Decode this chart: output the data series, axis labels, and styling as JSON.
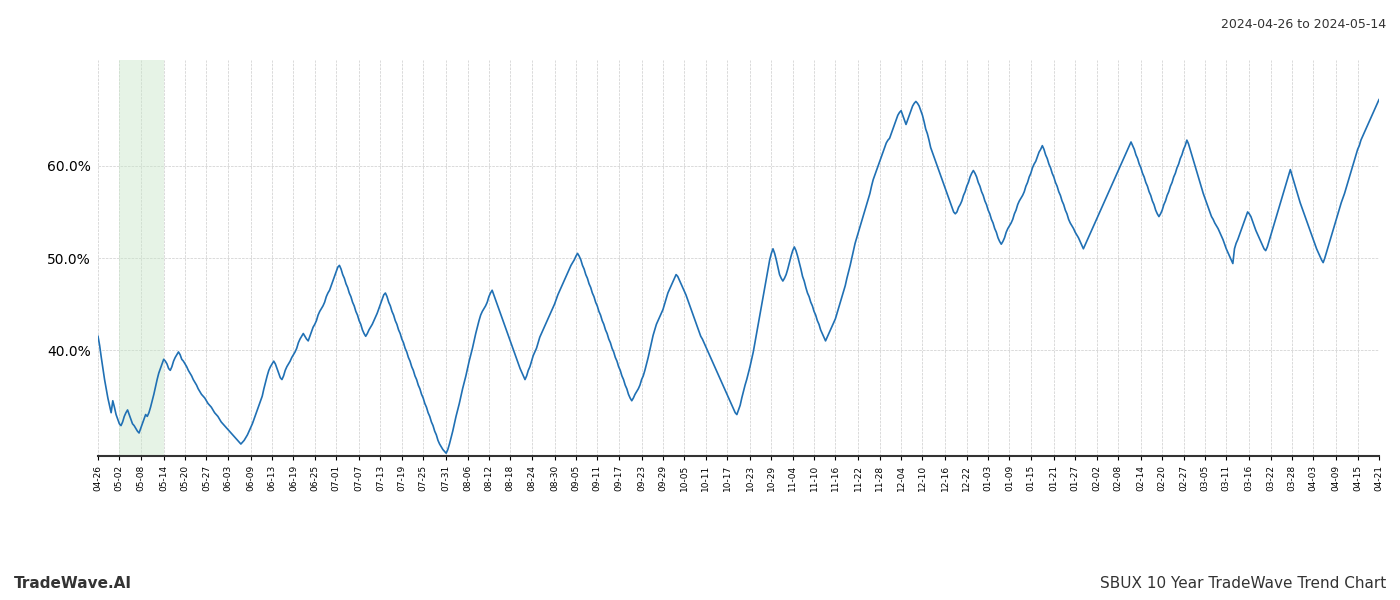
{
  "title_right": "2024-04-26 to 2024-05-14",
  "footer_left": "TradeWave.AI",
  "footer_right": "SBUX 10 Year TradeWave Trend Chart",
  "line_color": "#2070b4",
  "line_width": 1.2,
  "shade_color": "#c8e6c9",
  "shade_alpha": 0.45,
  "background_color": "#ffffff",
  "grid_color": "#cccccc",
  "ytick_labels": [
    "40.0%",
    "50.0%",
    "60.0%"
  ],
  "ytick_values": [
    0.4,
    0.5,
    0.6
  ],
  "ylim": [
    0.285,
    0.715
  ],
  "xtick_labels": [
    "04-26",
    "05-02",
    "05-08",
    "05-14",
    "05-20",
    "05-27",
    "06-03",
    "06-09",
    "06-13",
    "06-19",
    "06-25",
    "07-01",
    "07-07",
    "07-13",
    "07-19",
    "07-25",
    "07-31",
    "08-06",
    "08-12",
    "08-18",
    "08-24",
    "08-30",
    "09-05",
    "09-11",
    "09-17",
    "09-23",
    "09-29",
    "10-05",
    "10-11",
    "10-17",
    "10-23",
    "10-29",
    "11-04",
    "11-10",
    "11-16",
    "11-22",
    "11-28",
    "12-04",
    "12-10",
    "12-16",
    "12-22",
    "01-03",
    "01-09",
    "01-15",
    "01-21",
    "01-27",
    "02-02",
    "02-08",
    "02-14",
    "02-20",
    "02-27",
    "03-05",
    "03-11",
    "03-16",
    "03-22",
    "03-28",
    "04-03",
    "04-09",
    "04-15",
    "04-21"
  ],
  "shade_start_label": "05-02",
  "shade_end_label": "05-14",
  "y_values": [
    0.415,
    0.405,
    0.392,
    0.38,
    0.368,
    0.358,
    0.348,
    0.34,
    0.332,
    0.345,
    0.338,
    0.33,
    0.325,
    0.32,
    0.318,
    0.322,
    0.328,
    0.332,
    0.335,
    0.33,
    0.325,
    0.32,
    0.318,
    0.315,
    0.312,
    0.31,
    0.315,
    0.32,
    0.325,
    0.33,
    0.328,
    0.332,
    0.338,
    0.345,
    0.352,
    0.36,
    0.368,
    0.375,
    0.38,
    0.385,
    0.39,
    0.388,
    0.385,
    0.38,
    0.378,
    0.382,
    0.388,
    0.392,
    0.395,
    0.398,
    0.395,
    0.39,
    0.388,
    0.385,
    0.382,
    0.378,
    0.375,
    0.372,
    0.368,
    0.365,
    0.362,
    0.358,
    0.355,
    0.352,
    0.35,
    0.348,
    0.345,
    0.342,
    0.34,
    0.338,
    0.335,
    0.332,
    0.33,
    0.328,
    0.325,
    0.322,
    0.32,
    0.318,
    0.316,
    0.314,
    0.312,
    0.31,
    0.308,
    0.306,
    0.304,
    0.302,
    0.3,
    0.298,
    0.3,
    0.302,
    0.305,
    0.308,
    0.312,
    0.316,
    0.32,
    0.325,
    0.33,
    0.335,
    0.34,
    0.345,
    0.35,
    0.358,
    0.365,
    0.372,
    0.378,
    0.382,
    0.385,
    0.388,
    0.385,
    0.38,
    0.375,
    0.37,
    0.368,
    0.372,
    0.378,
    0.382,
    0.385,
    0.388,
    0.392,
    0.395,
    0.398,
    0.402,
    0.408,
    0.412,
    0.415,
    0.418,
    0.415,
    0.412,
    0.41,
    0.415,
    0.42,
    0.425,
    0.428,
    0.432,
    0.438,
    0.442,
    0.445,
    0.448,
    0.452,
    0.458,
    0.462,
    0.465,
    0.47,
    0.475,
    0.48,
    0.485,
    0.49,
    0.492,
    0.488,
    0.482,
    0.478,
    0.472,
    0.468,
    0.462,
    0.458,
    0.452,
    0.448,
    0.442,
    0.438,
    0.432,
    0.428,
    0.422,
    0.418,
    0.415,
    0.418,
    0.422,
    0.425,
    0.428,
    0.432,
    0.436,
    0.44,
    0.445,
    0.45,
    0.455,
    0.46,
    0.462,
    0.458,
    0.452,
    0.448,
    0.442,
    0.438,
    0.432,
    0.428,
    0.422,
    0.418,
    0.412,
    0.408,
    0.402,
    0.398,
    0.392,
    0.388,
    0.382,
    0.378,
    0.372,
    0.368,
    0.362,
    0.358,
    0.352,
    0.348,
    0.342,
    0.338,
    0.332,
    0.328,
    0.322,
    0.318,
    0.312,
    0.308,
    0.302,
    0.298,
    0.295,
    0.292,
    0.29,
    0.288,
    0.292,
    0.298,
    0.305,
    0.312,
    0.32,
    0.328,
    0.335,
    0.342,
    0.35,
    0.358,
    0.365,
    0.372,
    0.38,
    0.388,
    0.395,
    0.402,
    0.41,
    0.418,
    0.425,
    0.432,
    0.438,
    0.442,
    0.445,
    0.448,
    0.452,
    0.458,
    0.462,
    0.465,
    0.46,
    0.455,
    0.45,
    0.445,
    0.44,
    0.435,
    0.43,
    0.425,
    0.42,
    0.415,
    0.41,
    0.405,
    0.4,
    0.395,
    0.39,
    0.385,
    0.38,
    0.376,
    0.372,
    0.368,
    0.372,
    0.378,
    0.382,
    0.388,
    0.394,
    0.398,
    0.402,
    0.408,
    0.414,
    0.418,
    0.422,
    0.426,
    0.43,
    0.434,
    0.438,
    0.442,
    0.446,
    0.45,
    0.455,
    0.46,
    0.464,
    0.468,
    0.472,
    0.476,
    0.48,
    0.484,
    0.488,
    0.492,
    0.495,
    0.498,
    0.502,
    0.505,
    0.502,
    0.498,
    0.492,
    0.488,
    0.482,
    0.478,
    0.472,
    0.468,
    0.462,
    0.458,
    0.452,
    0.448,
    0.442,
    0.438,
    0.432,
    0.428,
    0.422,
    0.418,
    0.412,
    0.408,
    0.402,
    0.398,
    0.392,
    0.388,
    0.382,
    0.378,
    0.372,
    0.368,
    0.362,
    0.358,
    0.352,
    0.348,
    0.345,
    0.348,
    0.352,
    0.355,
    0.358,
    0.362,
    0.368,
    0.372,
    0.378,
    0.385,
    0.392,
    0.4,
    0.408,
    0.416,
    0.422,
    0.428,
    0.432,
    0.436,
    0.44,
    0.444,
    0.45,
    0.456,
    0.462,
    0.466,
    0.47,
    0.474,
    0.478,
    0.482,
    0.48,
    0.476,
    0.472,
    0.468,
    0.464,
    0.46,
    0.455,
    0.45,
    0.445,
    0.44,
    0.435,
    0.43,
    0.425,
    0.42,
    0.415,
    0.412,
    0.408,
    0.404,
    0.4,
    0.396,
    0.392,
    0.388,
    0.384,
    0.38,
    0.376,
    0.372,
    0.368,
    0.364,
    0.36,
    0.356,
    0.352,
    0.348,
    0.344,
    0.34,
    0.336,
    0.332,
    0.33,
    0.335,
    0.34,
    0.348,
    0.355,
    0.362,
    0.368,
    0.375,
    0.382,
    0.39,
    0.398,
    0.408,
    0.418,
    0.428,
    0.438,
    0.448,
    0.458,
    0.468,
    0.478,
    0.488,
    0.498,
    0.505,
    0.51,
    0.505,
    0.498,
    0.49,
    0.482,
    0.478,
    0.475,
    0.478,
    0.482,
    0.488,
    0.495,
    0.502,
    0.508,
    0.512,
    0.508,
    0.502,
    0.495,
    0.488,
    0.48,
    0.475,
    0.468,
    0.462,
    0.458,
    0.452,
    0.448,
    0.442,
    0.438,
    0.432,
    0.428,
    0.422,
    0.418,
    0.414,
    0.41,
    0.414,
    0.418,
    0.422,
    0.426,
    0.43,
    0.434,
    0.44,
    0.446,
    0.452,
    0.458,
    0.464,
    0.47,
    0.478,
    0.485,
    0.492,
    0.5,
    0.508,
    0.516,
    0.522,
    0.528,
    0.534,
    0.54,
    0.546,
    0.552,
    0.558,
    0.564,
    0.57,
    0.578,
    0.585,
    0.59,
    0.595,
    0.6,
    0.605,
    0.61,
    0.615,
    0.62,
    0.625,
    0.628,
    0.63,
    0.635,
    0.64,
    0.645,
    0.65,
    0.655,
    0.658,
    0.66,
    0.655,
    0.65,
    0.645,
    0.65,
    0.655,
    0.66,
    0.665,
    0.668,
    0.67,
    0.668,
    0.665,
    0.66,
    0.655,
    0.648,
    0.64,
    0.635,
    0.628,
    0.62,
    0.615,
    0.61,
    0.605,
    0.6,
    0.595,
    0.59,
    0.585,
    0.58,
    0.575,
    0.57,
    0.565,
    0.56,
    0.555,
    0.55,
    0.548,
    0.55,
    0.555,
    0.558,
    0.562,
    0.568,
    0.572,
    0.578,
    0.582,
    0.588,
    0.592,
    0.595,
    0.592,
    0.588,
    0.582,
    0.578,
    0.572,
    0.568,
    0.562,
    0.558,
    0.552,
    0.548,
    0.542,
    0.538,
    0.532,
    0.528,
    0.522,
    0.518,
    0.515,
    0.518,
    0.522,
    0.528,
    0.532,
    0.535,
    0.538,
    0.542,
    0.548,
    0.552,
    0.558,
    0.562,
    0.565,
    0.568,
    0.572,
    0.578,
    0.582,
    0.588,
    0.592,
    0.598,
    0.602,
    0.605,
    0.61,
    0.615,
    0.618,
    0.622,
    0.618,
    0.612,
    0.608,
    0.602,
    0.598,
    0.592,
    0.588,
    0.582,
    0.578,
    0.572,
    0.568,
    0.562,
    0.558,
    0.552,
    0.548,
    0.542,
    0.538,
    0.535,
    0.532,
    0.528,
    0.525,
    0.522,
    0.518,
    0.514,
    0.51,
    0.514,
    0.518,
    0.522,
    0.526,
    0.53,
    0.534,
    0.538,
    0.542,
    0.546,
    0.55,
    0.554,
    0.558,
    0.562,
    0.566,
    0.57,
    0.574,
    0.578,
    0.582,
    0.586,
    0.59,
    0.594,
    0.598,
    0.602,
    0.606,
    0.61,
    0.614,
    0.618,
    0.622,
    0.626,
    0.622,
    0.618,
    0.612,
    0.608,
    0.602,
    0.598,
    0.592,
    0.588,
    0.582,
    0.578,
    0.572,
    0.568,
    0.562,
    0.558,
    0.552,
    0.548,
    0.545,
    0.548,
    0.552,
    0.558,
    0.562,
    0.568,
    0.572,
    0.578,
    0.582,
    0.588,
    0.592,
    0.598,
    0.602,
    0.608,
    0.612,
    0.618,
    0.622,
    0.628,
    0.624,
    0.618,
    0.612,
    0.606,
    0.6,
    0.594,
    0.588,
    0.582,
    0.576,
    0.57,
    0.565,
    0.56,
    0.555,
    0.55,
    0.545,
    0.542,
    0.538,
    0.535,
    0.532,
    0.528,
    0.524,
    0.52,
    0.515,
    0.51,
    0.506,
    0.502,
    0.498,
    0.494,
    0.51,
    0.516,
    0.52,
    0.525,
    0.53,
    0.535,
    0.54,
    0.545,
    0.55,
    0.548,
    0.545,
    0.54,
    0.535,
    0.53,
    0.526,
    0.522,
    0.518,
    0.514,
    0.51,
    0.508,
    0.512,
    0.518,
    0.524,
    0.53,
    0.536,
    0.542,
    0.548,
    0.554,
    0.56,
    0.566,
    0.572,
    0.578,
    0.584,
    0.59,
    0.596,
    0.59,
    0.584,
    0.578,
    0.572,
    0.566,
    0.56,
    0.555,
    0.55,
    0.545,
    0.54,
    0.535,
    0.53,
    0.525,
    0.52,
    0.515,
    0.51,
    0.506,
    0.502,
    0.498,
    0.495,
    0.5,
    0.506,
    0.512,
    0.518,
    0.524,
    0.53,
    0.536,
    0.542,
    0.548,
    0.554,
    0.56,
    0.565,
    0.57,
    0.576,
    0.582,
    0.588,
    0.594,
    0.6,
    0.606,
    0.612,
    0.618,
    0.622,
    0.628,
    0.632,
    0.636,
    0.64,
    0.644,
    0.648,
    0.652,
    0.656,
    0.66,
    0.664,
    0.668,
    0.672
  ]
}
